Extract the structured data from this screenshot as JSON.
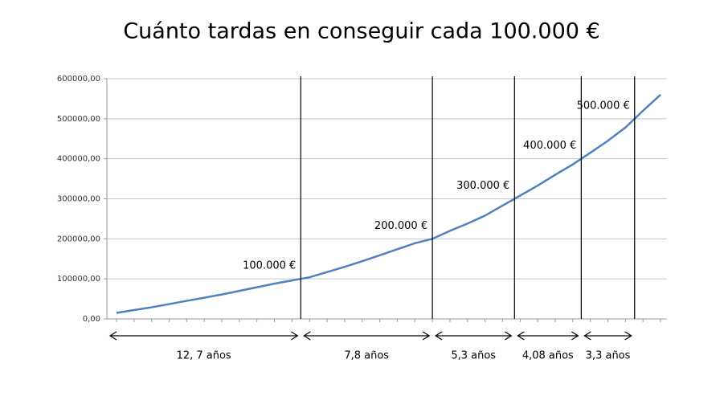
{
  "chart_data": {
    "type": "line",
    "title": "Cuánto tardas en conseguir cada 100.000 €",
    "categories": [
      null,
      null,
      null,
      null,
      null,
      null,
      null,
      null,
      null,
      null,
      null,
      null,
      null,
      null,
      null,
      null,
      null,
      null,
      null,
      null,
      null,
      null,
      null,
      null,
      null,
      null,
      null,
      null,
      null,
      null,
      null,
      null
    ],
    "series": [
      {
        "name": null,
        "color": "#4f81bd",
        "values": [
          15000,
          22000,
          29000,
          37000,
          45000,
          53000,
          61000,
          70000,
          79000,
          88000,
          96000,
          104000,
          117000,
          130000,
          144000,
          159000,
          174000,
          189000,
          200000,
          220000,
          238000,
          258000,
          283000,
          308000,
          333000,
          360000,
          386000,
          415000,
          445000,
          478000,
          520000,
          560000
        ]
      }
    ],
    "ylim": [
      0,
      600000
    ],
    "yticks": [
      {
        "value": 0,
        "label": "0,00"
      },
      {
        "value": 100000,
        "label": "100000,00"
      },
      {
        "value": 200000,
        "label": "200000,00"
      },
      {
        "value": 300000,
        "label": "300000,00"
      },
      {
        "value": 400000,
        "label": "400000,00"
      },
      {
        "value": 500000,
        "label": "500000,00"
      },
      {
        "value": 600000,
        "label": "600000,00"
      }
    ],
    "grid": true,
    "milestones": [
      {
        "value": 100000,
        "label": "100.000 €"
      },
      {
        "value": 200000,
        "label": "200.000 €"
      },
      {
        "value": 300000,
        "label": "300.000 €"
      },
      {
        "value": 400000,
        "label": "400.000 €"
      },
      {
        "value": 500000,
        "label": "500.000 €"
      }
    ],
    "intervals": [
      "12, 7 años",
      "7,8 años",
      "5,3 años",
      "4,08 años",
      "3,3 años"
    ]
  }
}
